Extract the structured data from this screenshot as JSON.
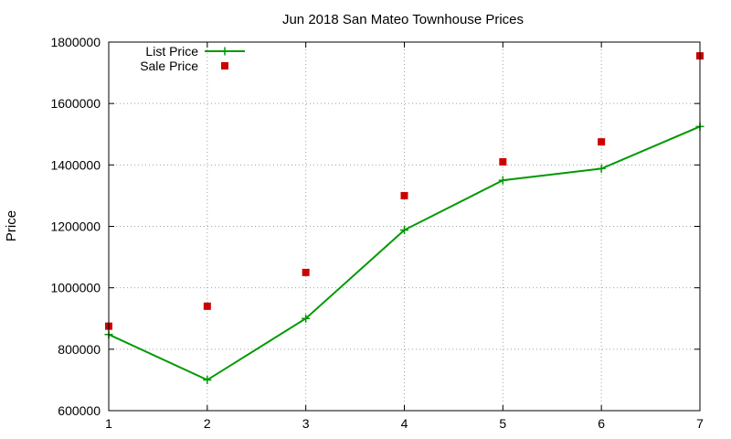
{
  "chart_data": {
    "type": "line",
    "title": "Jun 2018 San Mateo Townhouse Prices",
    "xlabel": "",
    "ylabel": "Price",
    "xlim": [
      1,
      7
    ],
    "ylim": [
      600000,
      1800000
    ],
    "xticks": [
      "1",
      "2",
      "3",
      "4",
      "5",
      "6",
      "7"
    ],
    "yticks": [
      "600000",
      "800000",
      "1000000",
      "1200000",
      "1400000",
      "1600000",
      "1800000"
    ],
    "grid": true,
    "legend_position": "top-left",
    "x": [
      1,
      2,
      3,
      4,
      5,
      6,
      7
    ],
    "series": [
      {
        "name": "List Price",
        "style": "lines+points",
        "marker": "plus",
        "color": "#009900",
        "values": [
          848000,
          700000,
          900000,
          1188000,
          1350000,
          1388000,
          1525000
        ]
      },
      {
        "name": "Sale Price",
        "style": "points",
        "marker": "square",
        "color": "#cc0000",
        "values": [
          875000,
          940000,
          1050000,
          1300000,
          1410000,
          1475000,
          1755000
        ]
      }
    ]
  }
}
